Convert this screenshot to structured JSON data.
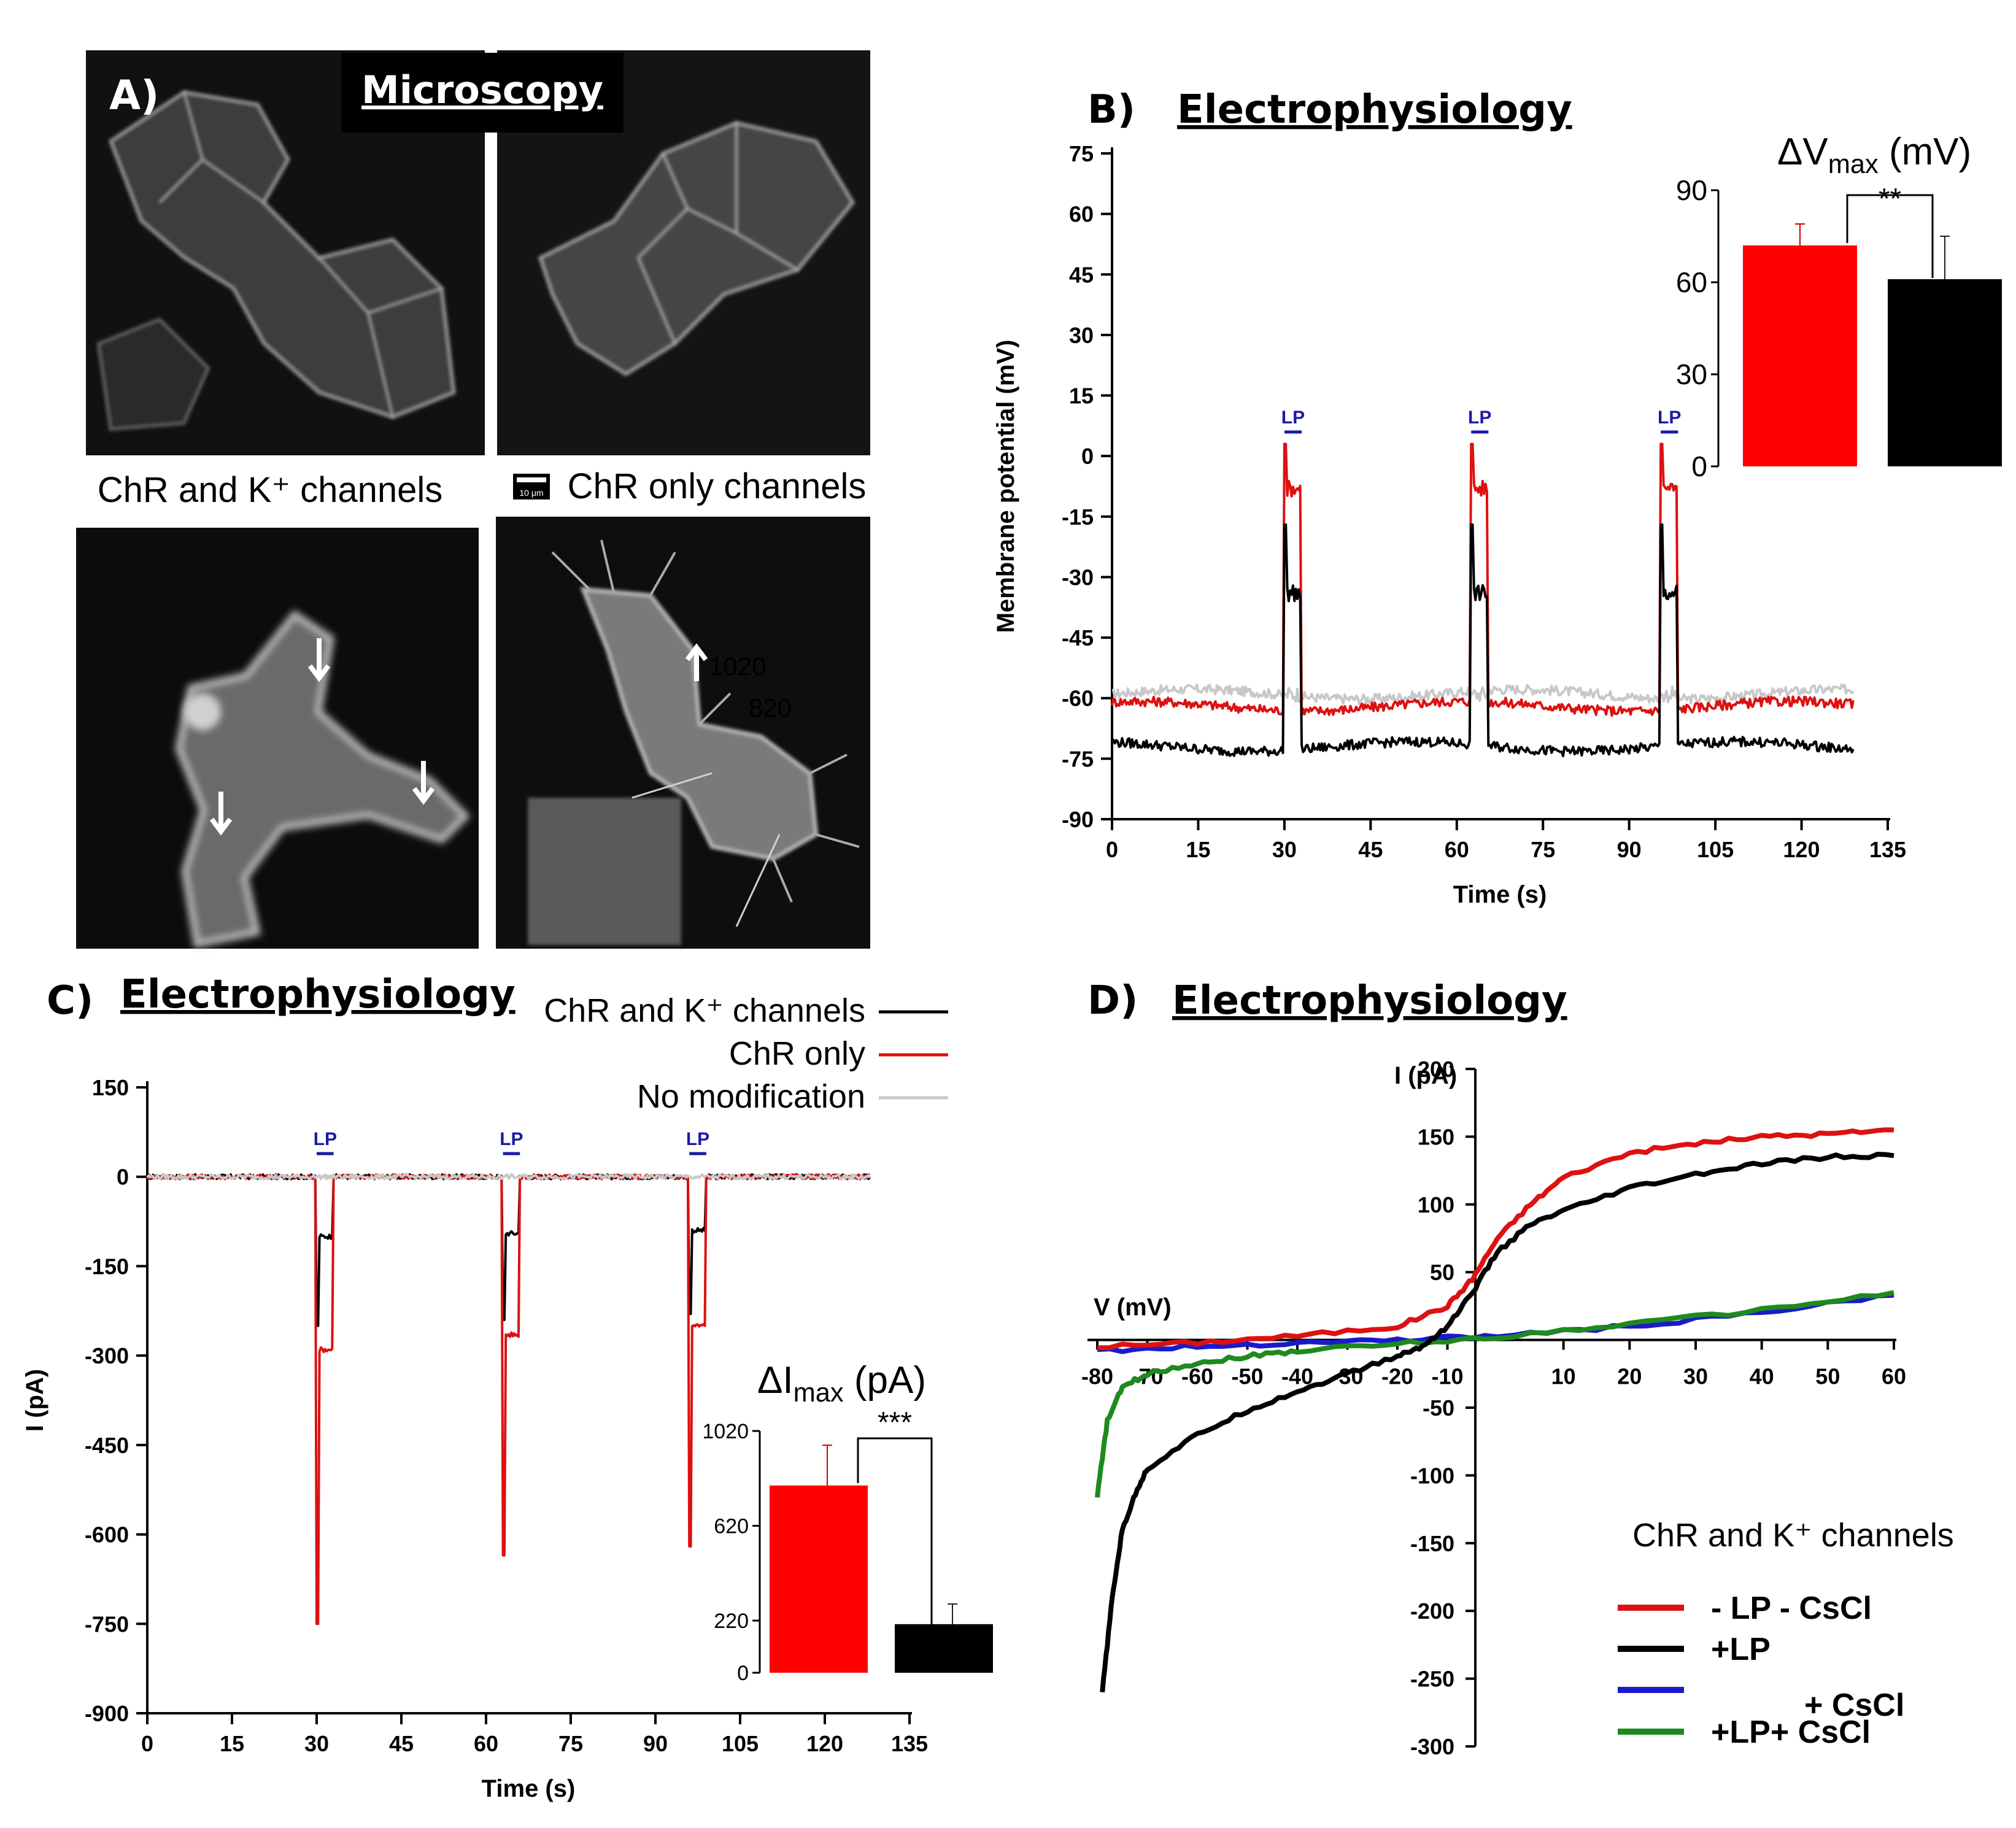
{
  "panel_a": {
    "letter": "A)",
    "title": "Microscopy",
    "label_left": "ChR and K⁺ channels",
    "label_right": "ChR only channels",
    "scalebar": "10 μm",
    "overlay_1": "1020",
    "overlay_2": "820"
  },
  "panel_b": {
    "letter": "B)",
    "title": "Electrophysiology"
  },
  "panel_c": {
    "letter": "C)",
    "title": "Electrophysiology"
  },
  "panel_d": {
    "letter": "D)",
    "title": "Electrophysiology"
  },
  "chart_data": [
    {
      "id": "B-main",
      "type": "line",
      "xlabel": "Time (s)",
      "ylabel": "Membrane potential (mV)",
      "xlim": [
        0,
        135
      ],
      "ylim": [
        -90,
        75
      ],
      "xticks": [
        0,
        15,
        30,
        45,
        60,
        75,
        90,
        105,
        120,
        135
      ],
      "yticks": [
        75,
        60,
        45,
        30,
        15,
        0,
        -15,
        -30,
        -45,
        -60,
        -75,
        -90
      ],
      "annotations": [
        "LP",
        "LP",
        "LP"
      ],
      "lp_starts": [
        30,
        62.5,
        95.5
      ],
      "lp_duration": 3,
      "series": [
        {
          "name": "No modification",
          "color": "#c8c8c8",
          "baseline": -59,
          "peak": -59,
          "plateau": -59
        },
        {
          "name": "ChR only",
          "color": "#dd1111",
          "baseline": -62,
          "peak": 3,
          "plateau": -8
        },
        {
          "name": "ChR and K⁺ channels",
          "color": "#000000",
          "baseline": -72,
          "peak": -17,
          "plateau": -34
        }
      ]
    },
    {
      "id": "B-inset",
      "type": "bar",
      "title": "ΔV",
      "title_sub": "max",
      "title_unit": "(mV)",
      "ylim": [
        0,
        90
      ],
      "yticks": [
        0,
        30,
        60,
        90
      ],
      "categories": [
        "ChR only",
        "ChR and K⁺ channels"
      ],
      "values": [
        72,
        61
      ],
      "errors": [
        7,
        14
      ],
      "colors": [
        "#ff0000",
        "#000000"
      ],
      "significance": "**"
    },
    {
      "id": "C-main",
      "type": "line",
      "xlabel": "Time (s)",
      "ylabel": "I (pA)",
      "xlim": [
        0,
        135
      ],
      "ylim": [
        -900,
        150
      ],
      "xticks": [
        0,
        15,
        30,
        45,
        60,
        75,
        90,
        105,
        120,
        135
      ],
      "yticks": [
        150,
        0,
        -150,
        -300,
        -450,
        -600,
        -750,
        -900
      ],
      "annotations": [
        "LP",
        "LP",
        "LP"
      ],
      "lp_starts": [
        30,
        63,
        96
      ],
      "lp_duration": 3,
      "legend": [
        "ChR and K⁺ channels",
        "ChR only",
        "No modification"
      ],
      "series": [
        {
          "name": "ChR and K⁺ channels",
          "color": "#000000",
          "baseline": 0,
          "spikes": [
            -250,
            -240,
            -230
          ],
          "plateau": [
            -100,
            -95,
            -90
          ]
        },
        {
          "name": "ChR only",
          "color": "#dd1111",
          "baseline": 0,
          "spikes": [
            -750,
            -635,
            -620
          ],
          "plateau": [
            -290,
            -265,
            -250
          ]
        },
        {
          "name": "No modification",
          "color": "#c8c8c8",
          "baseline": 0,
          "spikes": [
            0,
            0,
            0
          ],
          "plateau": [
            0,
            0,
            0
          ]
        }
      ]
    },
    {
      "id": "C-inset",
      "type": "bar",
      "title": "ΔI",
      "title_sub": "max",
      "title_unit": "(pA)",
      "ylim": [
        0,
        1020
      ],
      "yticks": [
        0,
        220,
        620,
        1020
      ],
      "categories": [
        "ChR only",
        "ChR and K⁺ channels"
      ],
      "values": [
        790,
        205
      ],
      "errors": [
        170,
        85
      ],
      "colors": [
        "#ff0000",
        "#000000"
      ],
      "significance": "***"
    },
    {
      "id": "D-main",
      "type": "line",
      "xlabel": "V (mV)",
      "ylabel": "I (pA)",
      "xlim": [
        -80,
        60
      ],
      "ylim": [
        -300,
        200
      ],
      "xticks": [
        -80,
        -70,
        -60,
        -50,
        -40,
        -30,
        -20,
        -10,
        10,
        20,
        30,
        40,
        50,
        60
      ],
      "yticks": [
        200,
        150,
        100,
        50,
        -50,
        -100,
        -150,
        -200,
        -250,
        -300
      ],
      "legend_title": "ChR and K⁺ channels",
      "series": [
        {
          "name": "- LP - CsCl",
          "color": "#dd1111",
          "x": [
            -80,
            -60,
            -40,
            -20,
            -10,
            -5,
            0,
            5,
            10,
            20,
            30,
            40,
            50,
            60
          ],
          "y": [
            -5,
            -2,
            3,
            10,
            25,
            45,
            75,
            100,
            120,
            138,
            145,
            150,
            152,
            155
          ]
        },
        {
          "name": "+LP",
          "color": "#000000",
          "x": [
            -79,
            -77,
            -75,
            -72,
            -70,
            -60,
            -50,
            -40,
            -30,
            -20,
            -15,
            -10,
            -5,
            0,
            5,
            10,
            20,
            30,
            40,
            50,
            60
          ],
          "y": [
            -260,
            -190,
            -140,
            -110,
            -95,
            -70,
            -52,
            -38,
            -25,
            -12,
            -5,
            10,
            35,
            65,
            85,
            95,
            112,
            122,
            130,
            135,
            136
          ]
        },
        {
          "name": "+ CsCl",
          "color": "#1a1acc",
          "x": [
            -80,
            -60,
            -40,
            -20,
            0,
            20,
            40,
            60
          ],
          "y": [
            -8,
            -5,
            -2,
            0,
            3,
            10,
            20,
            33
          ]
        },
        {
          "name": "+LP+ CsCl",
          "color": "#1e8a1e",
          "x": [
            -80,
            -78,
            -75,
            -70,
            -60,
            -50,
            -40,
            -20,
            0,
            20,
            40,
            60
          ],
          "y": [
            -115,
            -60,
            -35,
            -25,
            -17,
            -12,
            -8,
            -3,
            2,
            12,
            22,
            35
          ]
        }
      ]
    }
  ]
}
